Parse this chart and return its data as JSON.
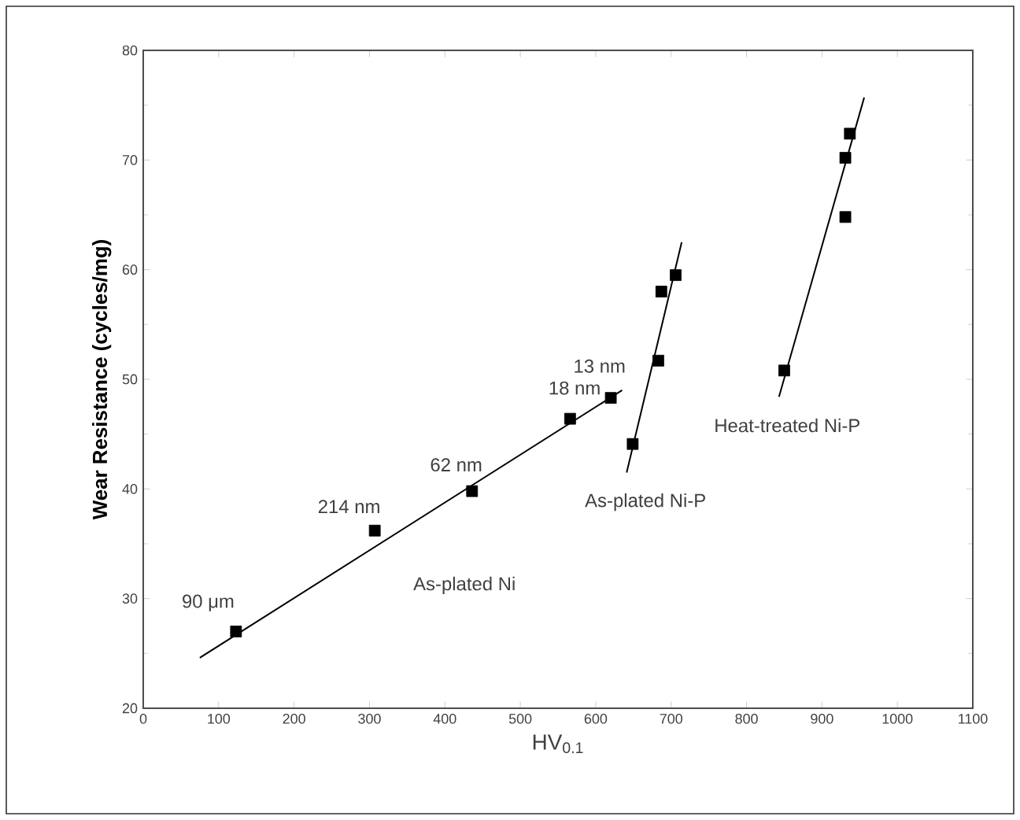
{
  "chart_data": {
    "type": "scatter",
    "xlabel": "HV$_{0.1}$",
    "ylabel": "Wear Resistance  (cycles/mg)",
    "xlim": [
      0,
      1100
    ],
    "ylim": [
      20,
      80
    ],
    "xticks": [
      0,
      100,
      200,
      300,
      400,
      500,
      600,
      700,
      800,
      900,
      1000,
      1100
    ],
    "yticks": [
      20,
      30,
      40,
      50,
      60,
      70,
      80
    ],
    "grid": false,
    "series": [
      {
        "color": "#000000",
        "marker": "square",
        "x": [
          123,
          307,
          436,
          566,
          620
        ],
        "values": [
          27.0,
          36.2,
          39.8,
          46.4,
          48.3
        ]
      },
      {
        "color": "#000000",
        "marker": "square",
        "x": [
          649,
          683,
          687,
          706
        ],
        "values": [
          44.1,
          51.7,
          58.0,
          59.5
        ]
      },
      {
        "color": "#000000",
        "marker": "square",
        "x": [
          850,
          931,
          931,
          937
        ],
        "values": [
          50.8,
          64.8,
          70.2,
          72.4
        ]
      },
      {
        "type": "line",
        "color": "#000000",
        "marker": "none",
        "x": [
          75,
          635
        ],
        "values": [
          24.6,
          49.0
        ]
      },
      {
        "type": "line",
        "color": "#000000",
        "marker": "none",
        "x": [
          641,
          714
        ],
        "values": [
          41.5,
          62.5
        ]
      },
      {
        "type": "line",
        "color": "#000000",
        "marker": "none",
        "x": [
          843,
          956
        ],
        "values": [
          48.4,
          75.7
        ]
      }
    ],
    "annotations": [
      "90 μm",
      "214 nm",
      "62 nm",
      "18 nm",
      "13 nm",
      "As-plated Ni",
      "As-plated Ni-P",
      "Heat-treated Ni-P"
    ]
  }
}
